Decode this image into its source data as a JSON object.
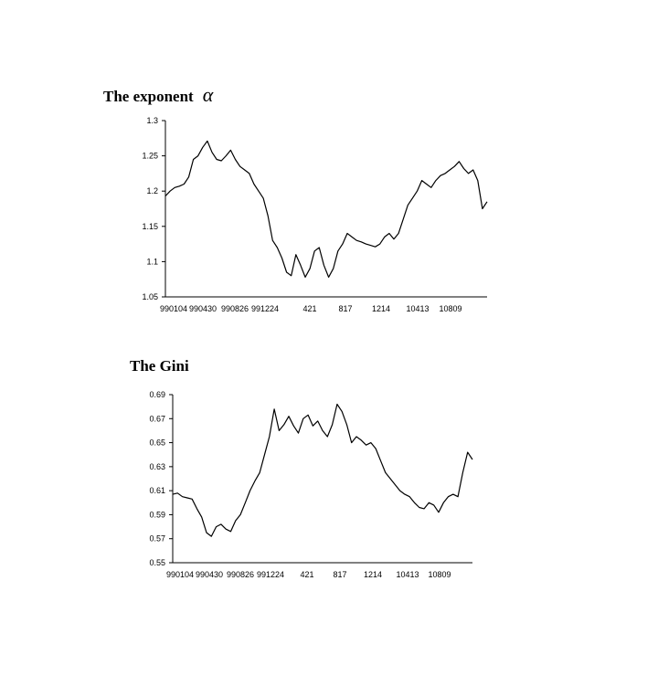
{
  "chart_data": [
    {
      "type": "line",
      "title": "The exponent",
      "title_symbol": "α",
      "ylim": [
        1.05,
        1.3
      ],
      "yticks": [
        "1.05",
        "1.1",
        "1.15",
        "1.2",
        "1.25",
        "1.3"
      ],
      "xticks": [
        "990104",
        "990430",
        "990826",
        "991224",
        "421",
        "817",
        "1214",
        "10413",
        "10809"
      ],
      "line_color": "#000000",
      "grid": false,
      "series": [
        {
          "values": [
            1.193,
            1.2,
            1.205,
            1.207,
            1.21,
            1.22,
            1.245,
            1.25,
            1.262,
            1.271,
            1.255,
            1.245,
            1.243,
            1.25,
            1.258,
            1.245,
            1.235,
            1.23,
            1.225,
            1.21,
            1.2,
            1.19,
            1.165,
            1.13,
            1.12,
            1.105,
            1.085,
            1.08,
            1.11,
            1.095,
            1.078,
            1.09,
            1.115,
            1.12,
            1.095,
            1.078,
            1.09,
            1.115,
            1.125,
            1.14,
            1.135,
            1.13,
            1.128,
            1.125,
            1.123,
            1.121,
            1.125,
            1.135,
            1.14,
            1.132,
            1.14,
            1.16,
            1.18,
            1.19,
            1.2,
            1.215,
            1.21,
            1.205,
            1.215,
            1.222,
            1.225,
            1.23,
            1.235,
            1.242,
            1.232,
            1.225,
            1.23,
            1.215,
            1.175,
            1.185
          ]
        }
      ]
    },
    {
      "type": "line",
      "title": "The Gini",
      "ylim": [
        0.55,
        0.69
      ],
      "yticks": [
        "0.55",
        "0.57",
        "0.59",
        "0.61",
        "0.63",
        "0.65",
        "0.67",
        "0.69"
      ],
      "xticks": [
        "990104",
        "990430",
        "990826",
        "991224",
        "421",
        "817",
        "1214",
        "10413",
        "10809"
      ],
      "line_color": "#000000",
      "grid": false,
      "series": [
        {
          "values": [
            0.607,
            0.608,
            0.605,
            0.604,
            0.603,
            0.595,
            0.588,
            0.575,
            0.572,
            0.58,
            0.582,
            0.578,
            0.576,
            0.585,
            0.59,
            0.6,
            0.61,
            0.618,
            0.625,
            0.64,
            0.655,
            0.678,
            0.66,
            0.665,
            0.672,
            0.664,
            0.658,
            0.67,
            0.673,
            0.664,
            0.668,
            0.66,
            0.655,
            0.665,
            0.682,
            0.676,
            0.665,
            0.65,
            0.655,
            0.652,
            0.648,
            0.65,
            0.645,
            0.635,
            0.625,
            0.62,
            0.615,
            0.61,
            0.607,
            0.605,
            0.6,
            0.596,
            0.595,
            0.6,
            0.598,
            0.592,
            0.6,
            0.605,
            0.607,
            0.605,
            0.625,
            0.642,
            0.636
          ]
        }
      ]
    }
  ]
}
